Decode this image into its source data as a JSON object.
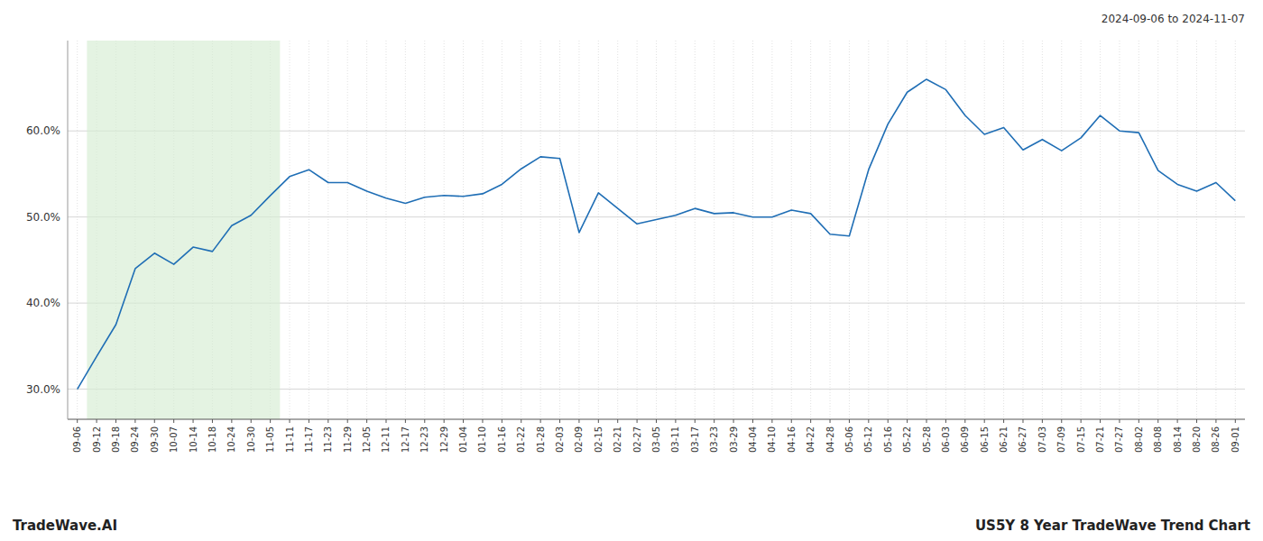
{
  "chart_data": {
    "type": "line",
    "annotations": [
      "2024-09-06 to 2024-11-07",
      "TradeWave.AI",
      "US5Y 8 Year TradeWave Trend Chart"
    ],
    "categories": [
      "09-06",
      "09-12",
      "09-18",
      "09-24",
      "09-30",
      "10-07",
      "10-14",
      "10-18",
      "10-24",
      "10-30",
      "11-05",
      "11-11",
      "11-17",
      "11-23",
      "11-29",
      "12-05",
      "12-11",
      "12-17",
      "12-23",
      "12-29",
      "01-04",
      "01-10",
      "01-16",
      "01-22",
      "01-28",
      "02-03",
      "02-09",
      "02-15",
      "02-21",
      "02-27",
      "03-05",
      "03-11",
      "03-17",
      "03-23",
      "03-29",
      "04-04",
      "04-10",
      "04-16",
      "04-22",
      "04-28",
      "05-06",
      "05-12",
      "05-16",
      "05-22",
      "05-28",
      "06-03",
      "06-09",
      "06-15",
      "06-21",
      "06-27",
      "07-03",
      "07-09",
      "07-15",
      "07-21",
      "07-27",
      "08-02",
      "08-08",
      "08-14",
      "08-20",
      "08-26",
      "09-01"
    ],
    "values": [
      0.3,
      0.338,
      0.375,
      0.44,
      0.458,
      0.445,
      0.465,
      0.46,
      0.49,
      0.502,
      0.525,
      0.547,
      0.555,
      0.54,
      0.54,
      0.53,
      0.522,
      0.516,
      0.523,
      0.525,
      0.524,
      0.527,
      0.538,
      0.556,
      0.57,
      0.568,
      0.482,
      0.528,
      0.51,
      0.492,
      0.497,
      0.502,
      0.51,
      0.504,
      0.505,
      0.5,
      0.5,
      0.508,
      0.504,
      0.48,
      0.478,
      0.555,
      0.608,
      0.645,
      0.66,
      0.648,
      0.618,
      0.596,
      0.604,
      0.578,
      0.59,
      0.577,
      0.592,
      0.618,
      0.6,
      0.598,
      0.554,
      0.538,
      0.53,
      0.54,
      0.519
    ],
    "color": "#1f6eb5",
    "shade": {
      "start": "09-12",
      "end": "11-05",
      "color": "#d6ecd2"
    },
    "ylim": [
      0.265,
      0.705
    ],
    "yticks": [
      {
        "value": 0.3,
        "label": "30.0%"
      },
      {
        "value": 0.4,
        "label": "40.0%"
      },
      {
        "value": 0.5,
        "label": "50.0%"
      },
      {
        "value": 0.6,
        "label": "60.0%"
      }
    ],
    "grid": true
  }
}
